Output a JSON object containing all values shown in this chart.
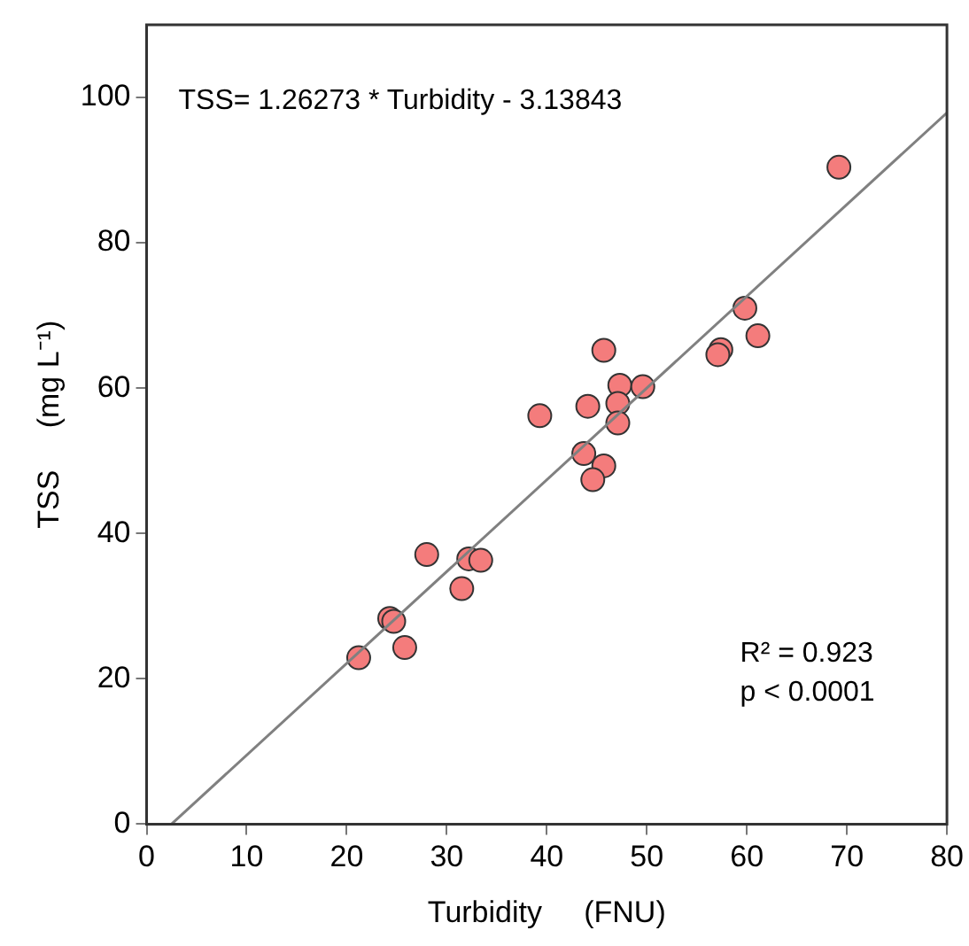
{
  "chart_data": {
    "type": "scatter",
    "xlabel": "Turbidity     (FNU)",
    "ylabel": "TSS     (mg L⁻¹)",
    "xlim": [
      0,
      80
    ],
    "ylim": [
      0,
      110
    ],
    "xticks": [
      0,
      10,
      20,
      30,
      40,
      50,
      60,
      70,
      80
    ],
    "yticks": [
      0,
      20,
      40,
      60,
      80,
      100
    ],
    "grid": false,
    "legend": false,
    "marker": "circle",
    "series": [
      {
        "color": "#f47c7c",
        "x": [
          59.8,
          61.1,
          57.4,
          57.1,
          45.7,
          47.3,
          49.6,
          44.1,
          47.1,
          39.3,
          47.1,
          43.7,
          45.7,
          44.6,
          28.0,
          32.2,
          33.4,
          31.5,
          24.3,
          24.7,
          25.8,
          21.2,
          69.2
        ],
        "values": [
          71.0,
          67.2,
          65.3,
          64.6,
          65.2,
          60.4,
          60.2,
          57.5,
          57.9,
          56.2,
          55.2,
          51.0,
          49.3,
          47.4,
          37.1,
          36.5,
          36.3,
          32.4,
          28.3,
          27.9,
          24.3,
          22.9,
          90.4
        ]
      },
      {
        "type": "line",
        "color": "#808080",
        "marker": "none",
        "line_style": "solid",
        "x": [
          2.485,
          80
        ],
        "values": [
          0,
          97.9
        ]
      }
    ],
    "annotations": [
      "TSS= 1.26273 * Turbidity - 3.13843",
      "R² = 0.923",
      "p < 0.0001"
    ]
  }
}
